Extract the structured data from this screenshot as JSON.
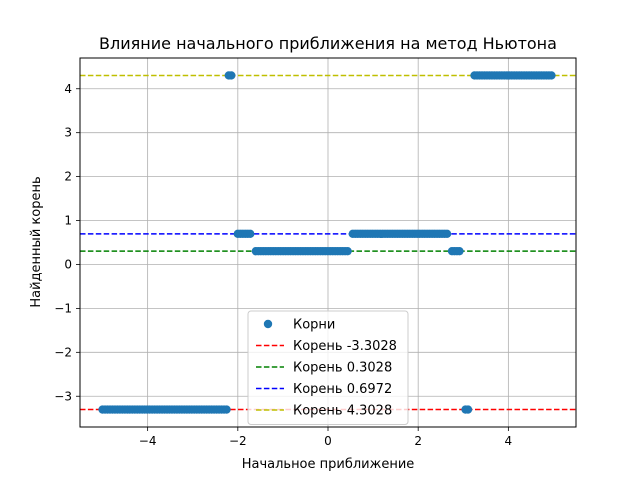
{
  "chart_data": {
    "type": "scatter",
    "title": "Влияние начального приближения на метод Ньютона",
    "xlabel": "Начальное приближение",
    "ylabel": "Найденный корень",
    "xlim": [
      -5.5,
      5.5
    ],
    "ylim": [
      -3.7,
      4.7
    ],
    "xticks": [
      -4,
      -2,
      0,
      2,
      4
    ],
    "xtick_labels": [
      "−4",
      "−2",
      "0",
      "2",
      "4"
    ],
    "yticks": [
      -3,
      -2,
      -1,
      0,
      1,
      2,
      3,
      4
    ],
    "ytick_labels": [
      "−3",
      "−2",
      "−1",
      "0",
      "1",
      "2",
      "3",
      "4"
    ],
    "grid": true,
    "legend_position": "bottom-center",
    "marker_color": "#1f77b4",
    "scatter_series": {
      "name": "Корни",
      "segments": [
        {
          "x_start": -5.0,
          "x_end": -2.25,
          "y": -3.3028
        },
        {
          "x_start": -2.2,
          "x_end": -2.1,
          "y": 4.3028
        },
        {
          "x_start": -2.0,
          "x_end": -1.7,
          "y": 0.6972
        },
        {
          "x_start": -1.6,
          "x_end": 0.45,
          "y": 0.3028
        },
        {
          "x_start": 0.55,
          "x_end": 2.65,
          "y": 0.6972
        },
        {
          "x_start": 2.75,
          "x_end": 2.95,
          "y": 0.3028
        },
        {
          "x_start": 3.05,
          "x_end": 3.15,
          "y": -3.3028
        },
        {
          "x_start": 3.25,
          "x_end": 5.0,
          "y": 4.3028
        }
      ]
    },
    "reference_lines": [
      {
        "name": "Корень -3.3028",
        "y": -3.3028,
        "color": "#ff0000"
      },
      {
        "name": "Корень 0.3028",
        "y": 0.3028,
        "color": "#008000"
      },
      {
        "name": "Корень 0.6972",
        "y": 0.6972,
        "color": "#0000ff"
      },
      {
        "name": "Корень 4.3028",
        "y": 4.3028,
        "color": "#bfbf00"
      }
    ]
  }
}
